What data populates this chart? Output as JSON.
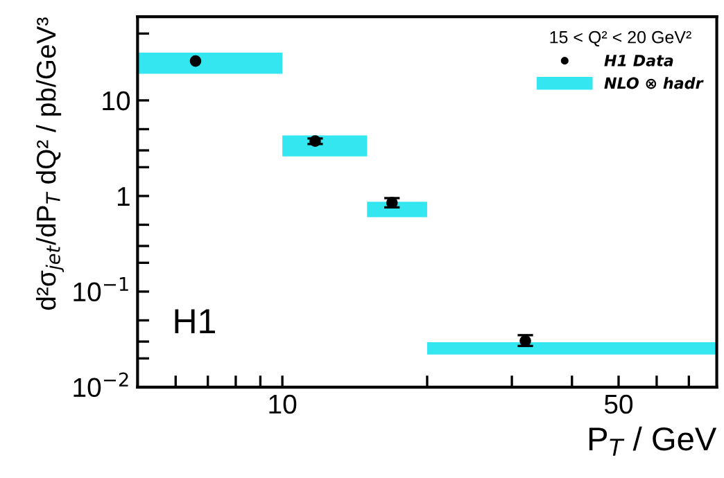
{
  "chart_data": {
    "type": "scatter",
    "xlabel": "P$_{T}$ / GeV",
    "ylabel": "d²σ$_{jet}$/dP$_{T}$ dQ² / pb/GeV³",
    "legend_title": "15 < Q² < 20 GeV²",
    "annotations": [
      "H1"
    ],
    "log": "xy",
    "xlim": [
      5,
      80
    ],
    "ylim": [
      0.01,
      75
    ],
    "xticks": [
      {
        "value": 6,
        "label": null
      },
      {
        "value": 7,
        "label": null
      },
      {
        "value": 8,
        "label": null
      },
      {
        "value": 9,
        "label": null
      },
      10,
      {
        "value": 20,
        "label": null
      },
      {
        "value": 30,
        "label": null
      },
      {
        "value": 40,
        "label": null
      },
      50,
      {
        "value": 60,
        "label": null
      },
      {
        "value": 70,
        "label": null
      }
    ],
    "yticks": [
      {
        "value": 0.01,
        "label": "10$^{−2}$"
      },
      {
        "value": 0.02,
        "label": null
      },
      {
        "value": 0.03,
        "label": null
      },
      {
        "value": 0.05,
        "label": null
      },
      {
        "value": 0.1,
        "label": "10$^{−1}$"
      },
      {
        "value": 0.2,
        "label": null
      },
      {
        "value": 0.3,
        "label": null
      },
      {
        "value": 0.5,
        "label": null
      },
      1,
      {
        "value": 2,
        "label": null
      },
      {
        "value": 3,
        "label": null
      },
      {
        "value": 5,
        "label": null
      },
      10,
      {
        "value": 20,
        "label": null
      },
      {
        "value": 30,
        "label": null
      },
      {
        "value": 50,
        "label": null
      }
    ],
    "grid": false,
    "legend": "top right",
    "marker": "circle",
    "series": [
      {
        "name": "H1 Data",
        "color": "#000000",
        "x": [
          6.6,
          11.7,
          16.9,
          32
        ],
        "values": [
          25.8,
          3.75,
          0.85,
          0.0305
        ],
        "errors": [
          null,
          [
            3.5,
            4.0
          ],
          [
            0.76,
            0.95
          ],
          [
            0.027,
            0.035
          ]
        ]
      },
      {
        "name": "NLO ⊗ hadr",
        "type": "histogram",
        "color": "#33e6f0",
        "bins": [
          5,
          10,
          15,
          20,
          80
        ],
        "base": [
          19,
          2.6,
          0.6,
          0.022
        ],
        "values": [
          12.6,
          1.7,
          0.27,
          0.0075
        ]
      }
    ]
  }
}
